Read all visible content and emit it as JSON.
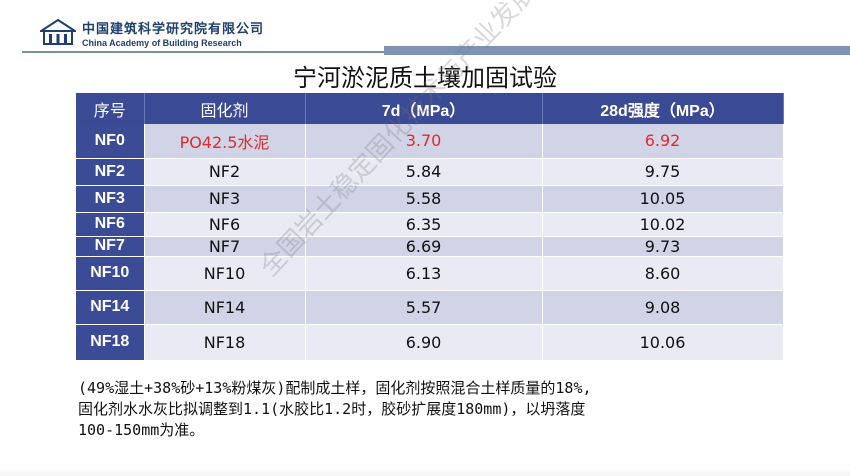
{
  "header": {
    "org_cn": "中国建筑科学研究院有限公司",
    "org_en": "China Academy of Building Research",
    "logo_icon": "cabr-building-logo-icon"
  },
  "title": "宁河淤泥质土壤加固试验",
  "table": {
    "columns": [
      "序号",
      "固化剂",
      "7d（MPa）",
      "28d强度（MPa）"
    ],
    "rows": [
      {
        "id": "NF0",
        "agent": "PO42.5水泥",
        "d7": "3.70",
        "d28": "6.92",
        "highlight": true
      },
      {
        "id": "NF2",
        "agent": "NF2",
        "d7": "5.84",
        "d28": "9.75"
      },
      {
        "id": "NF3",
        "agent": "NF3",
        "d7": "5.58",
        "d28": "10.05"
      },
      {
        "id": "NF6",
        "agent": "NF6",
        "d7": "6.35",
        "d28": "10.02"
      },
      {
        "id": "NF7",
        "agent": "NF7",
        "d7": "6.69",
        "d28": "9.73"
      },
      {
        "id": "NF10",
        "agent": "NF10",
        "d7": "6.13",
        "d28": "8.60"
      },
      {
        "id": "NF14",
        "agent": "NF14",
        "d7": "5.57",
        "d28": "9.08"
      },
      {
        "id": "NF18",
        "agent": "NF18",
        "d7": "6.90",
        "d28": "10.06"
      }
    ]
  },
  "note_lines": [
    "(49%湿土+38%砂+13%粉煤灰)配制成土样，固化剂按照混合土样质量的18%,",
    "固化剂水水灰比拟调整到1.1(水胶比1.2时，胶砂扩展度180mm)，以坍落度",
    "100-150mm为准。"
  ],
  "watermark": "全国岩土稳定固化技术与产业发展论坛",
  "colors": {
    "header": "#3a4a95",
    "row_odd": "#d1d4e7",
    "row_even": "#e9eaf4",
    "highlight": "#e12a2a"
  }
}
